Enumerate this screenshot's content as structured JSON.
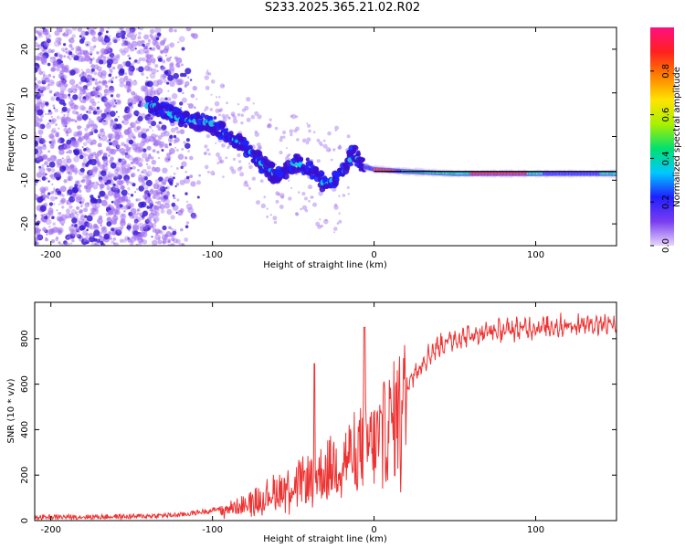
{
  "title": "S233.2025.365.21.02.R02",
  "colors": {
    "snr_line": "#ee3333",
    "spectrum_scatter": "#a270f0",
    "spectrum_core": "#3b1bd6",
    "carrier_line": "#000000",
    "axis": "#000000"
  },
  "chart_data": [
    {
      "id": "spectrogram",
      "type": "heatmap",
      "xlabel": "Height of straight line (km)",
      "ylabel": "Frequency (Hz)",
      "xlim": [
        -210,
        150
      ],
      "ylim": [
        -25,
        25
      ],
      "xticks": [
        -200,
        -100,
        0,
        100
      ],
      "yticks": [
        -20,
        -10,
        0,
        10,
        20
      ],
      "colorbar": {
        "label": "Normalized spectral amplitude",
        "ticks": [
          0.0,
          0.2,
          0.4,
          0.6,
          0.8
        ],
        "range": [
          0,
          1
        ],
        "stops": [
          "#e6d6fb",
          "#7a3cf0",
          "#2020ff",
          "#00c8ff",
          "#00e070",
          "#a8f000",
          "#ffe400",
          "#ff8000",
          "#ff2020",
          "#ff1080"
        ]
      },
      "signal_trace": [
        {
          "x": -135,
          "f": 7
        },
        {
          "x": -120,
          "f": 4
        },
        {
          "x": -100,
          "f": 3
        },
        {
          "x": -90,
          "f": 0
        },
        {
          "x": -80,
          "f": -2
        },
        {
          "x": -70,
          "f": -6
        },
        {
          "x": -60,
          "f": -9
        },
        {
          "x": -50,
          "f": -6
        },
        {
          "x": -40,
          "f": -7
        },
        {
          "x": -30,
          "f": -11
        },
        {
          "x": -20,
          "f": -9
        },
        {
          "x": -13,
          "f": -4
        },
        {
          "x": -5,
          "f": -7
        },
        {
          "x": 0,
          "f": -7.5
        },
        {
          "x": 20,
          "f": -8
        },
        {
          "x": 50,
          "f": -8.5
        },
        {
          "x": 100,
          "f": -8.5
        },
        {
          "x": 150,
          "f": -8.5
        }
      ],
      "carrier_line": {
        "x_start": 0,
        "x_end": 150,
        "f": -8
      }
    },
    {
      "id": "snr",
      "type": "line",
      "xlabel": "Height of straight line (km)",
      "ylabel": "SNR (10 * v/v)",
      "xlim": [
        -210,
        150
      ],
      "ylim": [
        0,
        960
      ],
      "xticks": [
        -200,
        -100,
        0,
        100
      ],
      "yticks": [
        0,
        200,
        400,
        600,
        800
      ],
      "envelope": [
        {
          "x": -210,
          "y": 15
        },
        {
          "x": -150,
          "y": 18
        },
        {
          "x": -120,
          "y": 25
        },
        {
          "x": -100,
          "y": 45
        },
        {
          "x": -85,
          "y": 70
        },
        {
          "x": -75,
          "y": 100
        },
        {
          "x": -65,
          "y": 140
        },
        {
          "x": -55,
          "y": 170
        },
        {
          "x": -45,
          "y": 200
        },
        {
          "x": -35,
          "y": 230
        },
        {
          "x": -25,
          "y": 280
        },
        {
          "x": -15,
          "y": 330
        },
        {
          "x": -10,
          "y": 360
        },
        {
          "x": -5,
          "y": 380
        },
        {
          "x": 0,
          "y": 380
        },
        {
          "x": 10,
          "y": 480
        },
        {
          "x": 20,
          "y": 600
        },
        {
          "x": 30,
          "y": 700
        },
        {
          "x": 40,
          "y": 770
        },
        {
          "x": 50,
          "y": 800
        },
        {
          "x": 70,
          "y": 830
        },
        {
          "x": 100,
          "y": 850
        },
        {
          "x": 150,
          "y": 870
        }
      ],
      "peaks": [
        {
          "x": -37,
          "y": 690
        },
        {
          "x": -6,
          "y": 850
        }
      ]
    }
  ]
}
